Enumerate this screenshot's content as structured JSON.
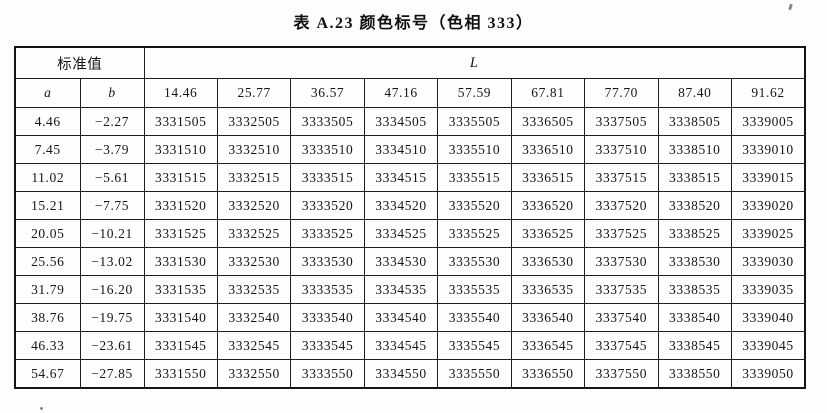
{
  "title": "表 A.23  颜色标号（色相 333）",
  "table": {
    "stub_label": "标准值",
    "l_label": "L",
    "col_a_label": "a",
    "col_b_label": "b",
    "l_values": [
      "14.46",
      "25.77",
      "36.57",
      "47.16",
      "57.59",
      "67.81",
      "77.70",
      "87.40",
      "91.62"
    ],
    "rows": [
      {
        "a": "4.46",
        "b": "−2.27",
        "codes": [
          "3331505",
          "3332505",
          "3333505",
          "3334505",
          "3335505",
          "3336505",
          "3337505",
          "3338505",
          "3339005"
        ]
      },
      {
        "a": "7.45",
        "b": "−3.79",
        "codes": [
          "3331510",
          "3332510",
          "3333510",
          "3334510",
          "3335510",
          "3336510",
          "3337510",
          "3338510",
          "3339010"
        ]
      },
      {
        "a": "11.02",
        "b": "−5.61",
        "codes": [
          "3331515",
          "3332515",
          "3333515",
          "3334515",
          "3335515",
          "3336515",
          "3337515",
          "3338515",
          "3339015"
        ]
      },
      {
        "a": "15.21",
        "b": "−7.75",
        "codes": [
          "3331520",
          "3332520",
          "3333520",
          "3334520",
          "3335520",
          "3336520",
          "3337520",
          "3338520",
          "3339020"
        ]
      },
      {
        "a": "20.05",
        "b": "−10.21",
        "codes": [
          "3331525",
          "3332525",
          "3333525",
          "3334525",
          "3335525",
          "3336525",
          "3337525",
          "3338525",
          "3339025"
        ]
      },
      {
        "a": "25.56",
        "b": "−13.02",
        "codes": [
          "3331530",
          "3332530",
          "3333530",
          "3334530",
          "3335530",
          "3336530",
          "3337530",
          "3338530",
          "3339030"
        ]
      },
      {
        "a": "31.79",
        "b": "−16.20",
        "codes": [
          "3331535",
          "3332535",
          "3333535",
          "3334535",
          "3335535",
          "3336535",
          "3337535",
          "3338535",
          "3339035"
        ]
      },
      {
        "a": "38.76",
        "b": "−19.75",
        "codes": [
          "3331540",
          "3332540",
          "3333540",
          "3334540",
          "3335540",
          "3336540",
          "3337540",
          "3338540",
          "3339040"
        ]
      },
      {
        "a": "46.33",
        "b": "−23.61",
        "codes": [
          "3331545",
          "3332545",
          "3333545",
          "3334545",
          "3335545",
          "3336545",
          "3337545",
          "3338545",
          "3339045"
        ]
      },
      {
        "a": "54.67",
        "b": "−27.85",
        "codes": [
          "3331550",
          "3332550",
          "3333550",
          "3334550",
          "3335550",
          "3336550",
          "3337550",
          "3338550",
          "3339050"
        ]
      }
    ]
  }
}
